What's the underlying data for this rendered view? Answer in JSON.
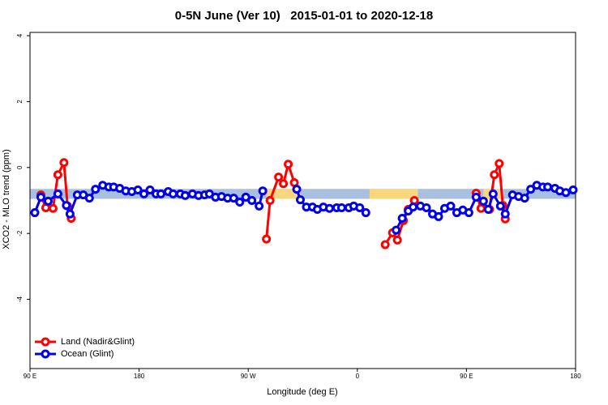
{
  "chart_data": {
    "type": "line",
    "title": "0-5N June (Ver 10)   2015-01-01 to 2020-12-18",
    "x_label": "Longitude (deg E)",
    "y_label": "XCO2 - MLO trend (ppm)",
    "xlim": [
      90,
      540
    ],
    "xticks": [
      {
        "value": 90,
        "label": "90 E"
      },
      180,
      {
        "value": 270,
        "label": "90 W"
      },
      {
        "value": 360,
        "label": "0"
      },
      {
        "value": 450,
        "label": "90 E"
      },
      {
        "value": 540,
        "label": "180"
      }
    ],
    "ylim": [
      -6.1,
      4.1
    ],
    "yticks": [
      4,
      2,
      0,
      -2,
      -4
    ],
    "legend": "bottom-left",
    "band": {
      "range": [
        -0.95,
        -0.65
      ],
      "color": "#a8bfe0",
      "land_color": "#f9d77e",
      "land_x": [
        [
          285,
          313
        ],
        [
          370,
          410
        ],
        [
          464,
          480
        ]
      ]
    },
    "series": [
      {
        "name": "Land (Nadir&Glint)",
        "color": "#ff0000",
        "x": [
          99,
          103,
          109,
          113,
          118,
          121,
          124,
          null,
          285,
          288,
          295,
          299,
          303,
          308,
          null,
          383,
          389,
          393,
          398,
          402,
          407,
          null,
          458,
          462,
          469,
          473,
          477,
          480,
          482
        ],
        "values": [
          -0.83,
          -1.22,
          -1.24,
          -0.22,
          0.15,
          -1.17,
          -1.54,
          null,
          -2.17,
          -1.0,
          -0.29,
          -0.49,
          0.1,
          -0.46,
          null,
          -2.34,
          -1.98,
          -2.2,
          -1.61,
          -1.27,
          -1.0,
          null,
          -0.78,
          -1.24,
          -1.27,
          -0.22,
          0.12,
          -1.15,
          -1.56
        ]
      },
      {
        "name": "Ocean (Glint)",
        "color": "#0000ee",
        "x": [
          94,
          99,
          105,
          113,
          120,
          123,
          129,
          134,
          139,
          144,
          150,
          155,
          159,
          164,
          169,
          174,
          179,
          184,
          189,
          194,
          198,
          204,
          208,
          214,
          218,
          224,
          229,
          234,
          238,
          243,
          248,
          253,
          258,
          263,
          268,
          273,
          279,
          282,
          null,
          310,
          313,
          318,
          323,
          327,
          332,
          337,
          343,
          347,
          353,
          357,
          362,
          367,
          null,
          392,
          397,
          402,
          406,
          412,
          417,
          422,
          427,
          432,
          437,
          442,
          447,
          452,
          458,
          464,
          468,
          472,
          478,
          482,
          488,
          493,
          498,
          503,
          508,
          513,
          517,
          523,
          527,
          532,
          538
        ],
        "values": [
          -1.37,
          -0.9,
          -1.02,
          -0.8,
          -1.15,
          -1.41,
          -0.83,
          -0.83,
          -0.93,
          -0.66,
          -0.54,
          -0.59,
          -0.59,
          -0.63,
          -0.71,
          -0.73,
          -0.68,
          -0.8,
          -0.68,
          -0.8,
          -0.8,
          -0.73,
          -0.8,
          -0.8,
          -0.85,
          -0.8,
          -0.85,
          -0.83,
          -0.8,
          -0.9,
          -0.88,
          -0.93,
          -0.93,
          -1.05,
          -0.9,
          -1.0,
          -1.17,
          -0.71,
          null,
          -0.66,
          -0.98,
          -1.2,
          -1.2,
          -1.27,
          -1.2,
          -1.24,
          -1.22,
          -1.22,
          -1.22,
          -1.17,
          -1.22,
          -1.37,
          null,
          -1.9,
          -1.54,
          -1.32,
          -1.2,
          -1.17,
          -1.22,
          -1.41,
          -1.49,
          -1.24,
          -1.17,
          -1.37,
          -1.29,
          -1.37,
          -0.9,
          -1.02,
          -1.27,
          -0.8,
          -1.17,
          -1.41,
          -0.83,
          -0.88,
          -0.93,
          -0.66,
          -0.54,
          -0.59,
          -0.59,
          -0.63,
          -0.71,
          -0.76,
          -0.68
        ]
      }
    ]
  }
}
